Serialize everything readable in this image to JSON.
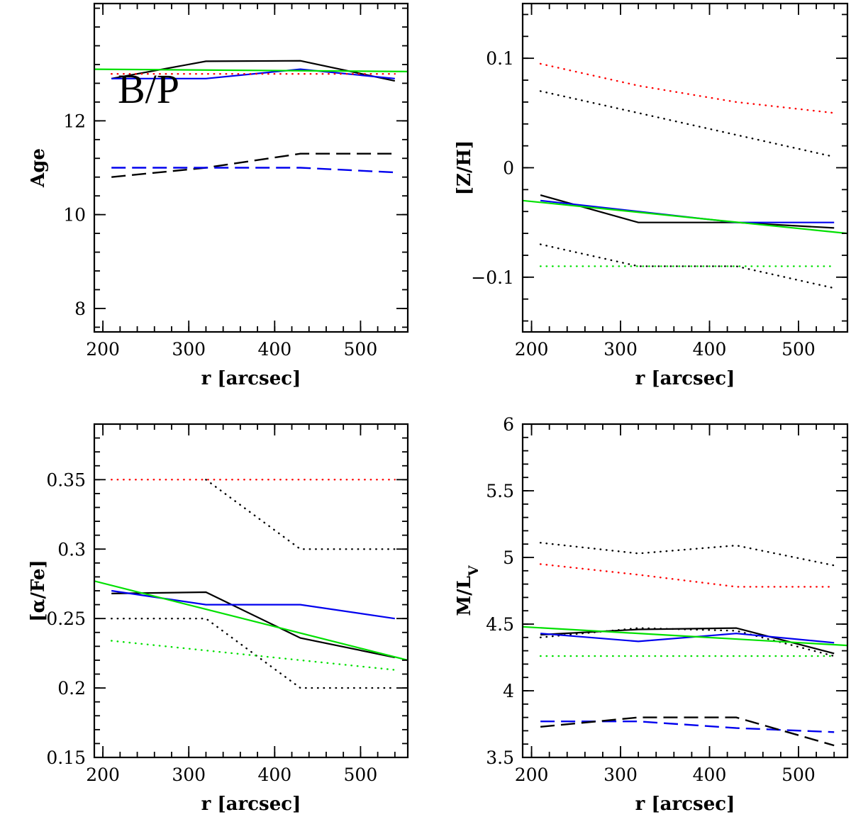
{
  "figure": {
    "colors": {
      "black": "#000000",
      "red": "#ff0000",
      "green": "#00e000",
      "blue": "#0000ee"
    },
    "panels": [
      {
        "id": "age",
        "ylabel": "Age",
        "xlabel": "r [arcsec]",
        "xlim": [
          190,
          555
        ],
        "ylim": [
          7.5,
          14.5
        ],
        "xticks": [
          200,
          300,
          400,
          500
        ],
        "xtick_labels": [
          "200",
          "300",
          "400",
          "500"
        ],
        "xminor_step": 20,
        "yticks": [
          8,
          10,
          12
        ],
        "ytick_labels": [
          "8",
          "10",
          "12"
        ],
        "yminor_step": 0.4,
        "annotation": "B/P",
        "series": [
          {
            "color": "black",
            "style": "solid",
            "x": [
              210,
              320,
              430,
              540
            ],
            "y": [
              12.9,
              13.27,
              13.28,
              12.85
            ]
          },
          {
            "color": "blue",
            "style": "solid",
            "x": [
              210,
              320,
              430,
              540
            ],
            "y": [
              12.9,
              12.9,
              13.1,
              12.9
            ]
          },
          {
            "color": "green",
            "style": "solid",
            "x": [
              190,
              555
            ],
            "y": [
              13.1,
              13.05
            ]
          },
          {
            "color": "red",
            "style": "dotted",
            "x": [
              210,
              540
            ],
            "y": [
              13.0,
              13.0
            ]
          },
          {
            "color": "black",
            "style": "dashed",
            "x": [
              210,
              320,
              430,
              540
            ],
            "y": [
              10.8,
              11.0,
              11.3,
              11.3
            ]
          },
          {
            "color": "blue",
            "style": "dashed",
            "x": [
              210,
              320,
              430,
              540
            ],
            "y": [
              11.0,
              11.0,
              11.0,
              10.9
            ]
          }
        ]
      },
      {
        "id": "zh",
        "ylabel": "[Z/H]",
        "xlabel": "r [arcsec]",
        "xlim": [
          190,
          555
        ],
        "ylim": [
          -0.15,
          0.15
        ],
        "xticks": [
          200,
          300,
          400,
          500
        ],
        "xtick_labels": [
          "200",
          "300",
          "400",
          "500"
        ],
        "xminor_step": 20,
        "yticks": [
          -0.1,
          0,
          0.1
        ],
        "ytick_labels": [
          "−0.1",
          "0",
          "0.1"
        ],
        "yminor_step": 0.02,
        "series": [
          {
            "color": "red",
            "style": "dotted",
            "x": [
              210,
              320,
              430,
              540
            ],
            "y": [
              0.095,
              0.075,
              0.06,
              0.05
            ]
          },
          {
            "color": "black",
            "style": "dotted",
            "x": [
              210,
              320,
              430,
              540
            ],
            "y": [
              0.07,
              0.05,
              0.03,
              0.01
            ]
          },
          {
            "color": "black",
            "style": "solid",
            "x": [
              210,
              320,
              430,
              540
            ],
            "y": [
              -0.025,
              -0.05,
              -0.05,
              -0.055
            ]
          },
          {
            "color": "blue",
            "style": "solid",
            "x": [
              210,
              320,
              430,
              540
            ],
            "y": [
              -0.03,
              -0.04,
              -0.05,
              -0.05
            ]
          },
          {
            "color": "green",
            "style": "solid",
            "x": [
              190,
              555
            ],
            "y": [
              -0.03,
              -0.06
            ]
          },
          {
            "color": "black",
            "style": "dotted",
            "x": [
              210,
              320,
              430,
              540
            ],
            "y": [
              -0.07,
              -0.09,
              -0.09,
              -0.11
            ]
          },
          {
            "color": "green",
            "style": "dotted",
            "x": [
              210,
              540
            ],
            "y": [
              -0.09,
              -0.09
            ]
          }
        ]
      },
      {
        "id": "alphafe",
        "ylabel": "[α/Fe]",
        "xlabel": "r [arcsec]",
        "xlim": [
          190,
          555
        ],
        "ylim": [
          0.15,
          0.39
        ],
        "xticks": [
          200,
          300,
          400,
          500
        ],
        "xtick_labels": [
          "200",
          "300",
          "400",
          "500"
        ],
        "xminor_step": 20,
        "yticks": [
          0.15,
          0.2,
          0.25,
          0.3,
          0.35
        ],
        "ytick_labels": [
          "0.15",
          "0.2",
          "0.25",
          "0.3",
          "0.35"
        ],
        "yminor_step": 0.01,
        "series": [
          {
            "color": "red",
            "style": "dotted",
            "x": [
              210,
              540
            ],
            "y": [
              0.35,
              0.35
            ]
          },
          {
            "color": "black",
            "style": "dotted",
            "x": [
              320,
              430,
              540
            ],
            "y": [
              0.35,
              0.3,
              0.3
            ]
          },
          {
            "color": "black",
            "style": "solid",
            "x": [
              210,
              320,
              430,
              540
            ],
            "y": [
              0.268,
              0.269,
              0.236,
              0.222
            ]
          },
          {
            "color": "blue",
            "style": "solid",
            "x": [
              210,
              320,
              430,
              540
            ],
            "y": [
              0.27,
              0.26,
              0.26,
              0.25
            ]
          },
          {
            "color": "green",
            "style": "solid",
            "x": [
              190,
              555
            ],
            "y": [
              0.277,
              0.22
            ]
          },
          {
            "color": "black",
            "style": "dotted",
            "x": [
              210,
              320,
              430,
              540
            ],
            "y": [
              0.25,
              0.25,
              0.2,
              0.2
            ]
          },
          {
            "color": "green",
            "style": "dotted",
            "x": [
              210,
              540
            ],
            "y": [
              0.234,
              0.213
            ]
          }
        ]
      },
      {
        "id": "ml",
        "ylabel": "M/L",
        "ylabel_sub": "V",
        "xlabel": "r [arcsec]",
        "xlim": [
          190,
          555
        ],
        "ylim": [
          3.5,
          6.0
        ],
        "xticks": [
          200,
          300,
          400,
          500
        ],
        "xtick_labels": [
          "200",
          "300",
          "400",
          "500"
        ],
        "xminor_step": 20,
        "yticks": [
          3.5,
          4,
          4.5,
          5,
          5.5,
          6
        ],
        "ytick_labels": [
          "3.5",
          "4",
          "4.5",
          "5",
          "5.5",
          "6"
        ],
        "yminor_step": 0.1,
        "series": [
          {
            "color": "black",
            "style": "dotted",
            "x": [
              210,
              320,
              430,
              540
            ],
            "y": [
              5.11,
              5.03,
              5.09,
              4.94
            ]
          },
          {
            "color": "red",
            "style": "dotted",
            "x": [
              210,
              320,
              430,
              540
            ],
            "y": [
              4.95,
              4.87,
              4.78,
              4.78
            ]
          },
          {
            "color": "black",
            "style": "solid",
            "x": [
              210,
              320,
              430,
              540
            ],
            "y": [
              4.42,
              4.46,
              4.47,
              4.28
            ]
          },
          {
            "color": "black",
            "style": "dotted",
            "x": [
              210,
              320,
              430,
              540
            ],
            "y": [
              4.4,
              4.47,
              4.45,
              4.26
            ]
          },
          {
            "color": "blue",
            "style": "solid",
            "x": [
              210,
              320,
              430,
              540
            ],
            "y": [
              4.43,
              4.37,
              4.43,
              4.36
            ]
          },
          {
            "color": "green",
            "style": "solid",
            "x": [
              190,
              555
            ],
            "y": [
              4.48,
              4.34
            ]
          },
          {
            "color": "green",
            "style": "dotted",
            "x": [
              210,
              540
            ],
            "y": [
              4.26,
              4.26
            ]
          },
          {
            "color": "blue",
            "style": "dashed",
            "x": [
              210,
              320,
              430,
              540
            ],
            "y": [
              3.77,
              3.77,
              3.72,
              3.69
            ]
          },
          {
            "color": "black",
            "style": "dashed",
            "x": [
              210,
              320,
              430,
              540
            ],
            "y": [
              3.73,
              3.8,
              3.8,
              3.59
            ]
          }
        ]
      }
    ]
  },
  "chart_data": [
    {
      "type": "line",
      "ylabel": "Age",
      "xlabel": "r [arcsec]",
      "xlim": [
        190,
        555
      ],
      "ylim": [
        7.5,
        14.5
      ],
      "annotation": "B/P",
      "series": [
        {
          "name": "black solid",
          "x": [
            210,
            320,
            430,
            540
          ],
          "values": [
            12.9,
            13.27,
            13.28,
            12.85
          ]
        },
        {
          "name": "blue solid",
          "x": [
            210,
            320,
            430,
            540
          ],
          "values": [
            12.9,
            12.9,
            13.1,
            12.9
          ]
        },
        {
          "name": "green solid",
          "x": [
            190,
            555
          ],
          "values": [
            13.1,
            13.05
          ]
        },
        {
          "name": "red dotted",
          "x": [
            210,
            540
          ],
          "values": [
            13.0,
            13.0
          ]
        },
        {
          "name": "black dashed",
          "x": [
            210,
            320,
            430,
            540
          ],
          "values": [
            10.8,
            11.0,
            11.3,
            11.3
          ]
        },
        {
          "name": "blue dashed",
          "x": [
            210,
            320,
            430,
            540
          ],
          "values": [
            11.0,
            11.0,
            11.0,
            10.9
          ]
        }
      ]
    },
    {
      "type": "line",
      "ylabel": "[Z/H]",
      "xlabel": "r [arcsec]",
      "xlim": [
        190,
        555
      ],
      "ylim": [
        -0.15,
        0.15
      ],
      "series": [
        {
          "name": "red dotted",
          "x": [
            210,
            320,
            430,
            540
          ],
          "values": [
            0.095,
            0.075,
            0.06,
            0.05
          ]
        },
        {
          "name": "black dotted upper",
          "x": [
            210,
            320,
            430,
            540
          ],
          "values": [
            0.07,
            0.05,
            0.03,
            0.01
          ]
        },
        {
          "name": "black solid",
          "x": [
            210,
            320,
            430,
            540
          ],
          "values": [
            -0.025,
            -0.05,
            -0.05,
            -0.055
          ]
        },
        {
          "name": "blue solid",
          "x": [
            210,
            320,
            430,
            540
          ],
          "values": [
            -0.03,
            -0.04,
            -0.05,
            -0.05
          ]
        },
        {
          "name": "green solid",
          "x": [
            190,
            555
          ],
          "values": [
            -0.03,
            -0.06
          ]
        },
        {
          "name": "black dotted lower",
          "x": [
            210,
            320,
            430,
            540
          ],
          "values": [
            -0.07,
            -0.09,
            -0.09,
            -0.11
          ]
        },
        {
          "name": "green dotted",
          "x": [
            210,
            540
          ],
          "values": [
            -0.09,
            -0.09
          ]
        }
      ]
    },
    {
      "type": "line",
      "ylabel": "[α/Fe]",
      "xlabel": "r [arcsec]",
      "xlim": [
        190,
        555
      ],
      "ylim": [
        0.15,
        0.39
      ],
      "series": [
        {
          "name": "red dotted",
          "x": [
            210,
            540
          ],
          "values": [
            0.35,
            0.35
          ]
        },
        {
          "name": "black dotted upper",
          "x": [
            320,
            430,
            540
          ],
          "values": [
            0.35,
            0.3,
            0.3
          ]
        },
        {
          "name": "black solid",
          "x": [
            210,
            320,
            430,
            540
          ],
          "values": [
            0.268,
            0.269,
            0.236,
            0.222
          ]
        },
        {
          "name": "blue solid",
          "x": [
            210,
            320,
            430,
            540
          ],
          "values": [
            0.27,
            0.26,
            0.26,
            0.25
          ]
        },
        {
          "name": "green solid",
          "x": [
            190,
            555
          ],
          "values": [
            0.277,
            0.22
          ]
        },
        {
          "name": "black dotted lower",
          "x": [
            210,
            320,
            430,
            540
          ],
          "values": [
            0.25,
            0.25,
            0.2,
            0.2
          ]
        },
        {
          "name": "green dotted",
          "x": [
            210,
            540
          ],
          "values": [
            0.234,
            0.213
          ]
        }
      ]
    },
    {
      "type": "line",
      "ylabel": "M/L_V",
      "xlabel": "r [arcsec]",
      "xlim": [
        190,
        555
      ],
      "ylim": [
        3.5,
        6.0
      ],
      "series": [
        {
          "name": "black dotted upper",
          "x": [
            210,
            320,
            430,
            540
          ],
          "values": [
            5.11,
            5.03,
            5.09,
            4.94
          ]
        },
        {
          "name": "red dotted",
          "x": [
            210,
            320,
            430,
            540
          ],
          "values": [
            4.95,
            4.87,
            4.78,
            4.78
          ]
        },
        {
          "name": "black solid",
          "x": [
            210,
            320,
            430,
            540
          ],
          "values": [
            4.42,
            4.46,
            4.47,
            4.28
          ]
        },
        {
          "name": "black dotted middle",
          "x": [
            210,
            320,
            430,
            540
          ],
          "values": [
            4.4,
            4.47,
            4.45,
            4.26
          ]
        },
        {
          "name": "blue solid",
          "x": [
            210,
            320,
            430,
            540
          ],
          "values": [
            4.43,
            4.37,
            4.43,
            4.36
          ]
        },
        {
          "name": "green solid",
          "x": [
            190,
            555
          ],
          "values": [
            4.48,
            4.34
          ]
        },
        {
          "name": "green dotted",
          "x": [
            210,
            540
          ],
          "values": [
            4.26,
            4.26
          ]
        },
        {
          "name": "blue dashed",
          "x": [
            210,
            320,
            430,
            540
          ],
          "values": [
            3.77,
            3.77,
            3.72,
            3.69
          ]
        },
        {
          "name": "black dashed",
          "x": [
            210,
            320,
            430,
            540
          ],
          "values": [
            3.73,
            3.8,
            3.8,
            3.59
          ]
        }
      ]
    }
  ]
}
